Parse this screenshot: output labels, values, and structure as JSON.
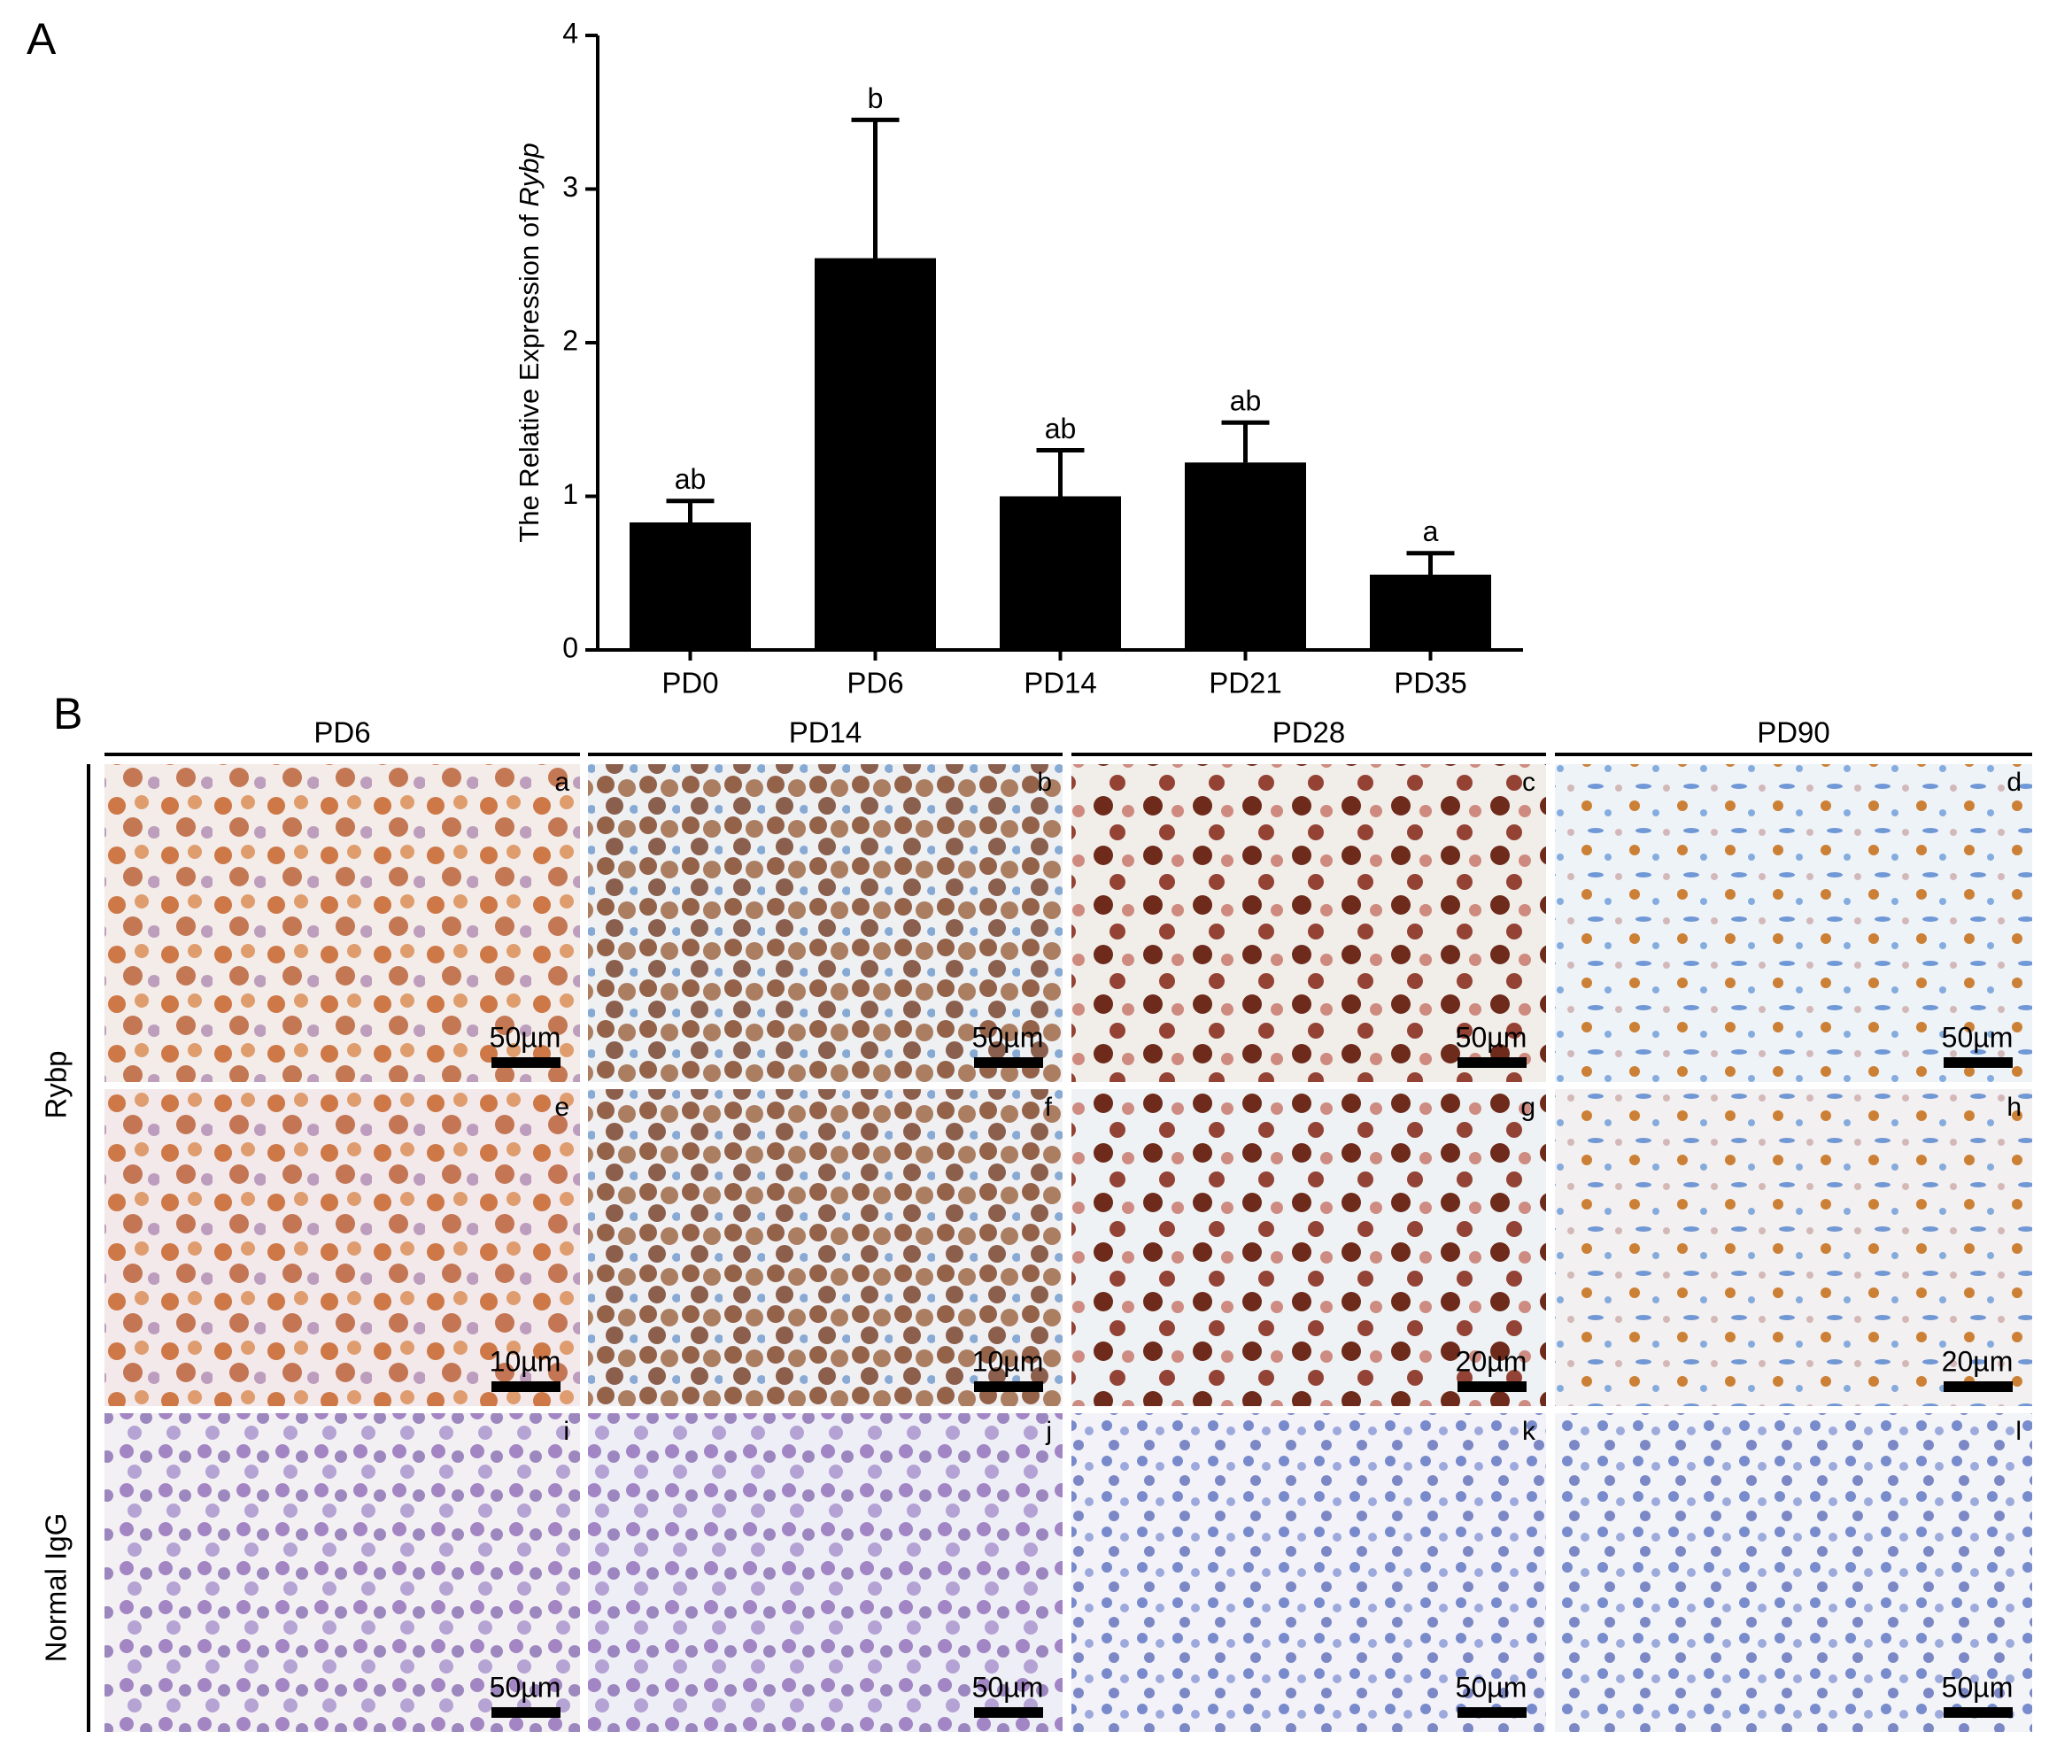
{
  "chart_data": {
    "type": "bar",
    "panel_label": "A",
    "ylabel": [
      "The Relative Expression of",
      "Rybp"
    ],
    "categories": [
      "PD0",
      "PD6",
      "PD14",
      "PD21",
      "PD35"
    ],
    "values": [
      0.83,
      2.55,
      1.0,
      1.22,
      0.49
    ],
    "errors": [
      0.14,
      0.9,
      0.3,
      0.26,
      0.14
    ],
    "significance": [
      "ab",
      "b",
      "ab",
      "ab",
      "a"
    ],
    "color": "#000000",
    "ylim": [
      0,
      4
    ],
    "yticks": [
      0,
      1,
      2,
      3,
      4
    ]
  },
  "figure": {
    "panel_label": "B",
    "columns": [
      "PD6",
      "PD14",
      "PD28",
      "PD90"
    ],
    "rows": [
      "Rybp",
      "Normal IgG"
    ],
    "tiles": [
      {
        "letter": "a",
        "scale": "50µm"
      },
      {
        "letter": "b",
        "scale": "50µm"
      },
      {
        "letter": "c",
        "scale": "50µm"
      },
      {
        "letter": "d",
        "scale": "50µm"
      },
      {
        "letter": "e",
        "scale": "10µm"
      },
      {
        "letter": "f",
        "scale": "10µm"
      },
      {
        "letter": "g",
        "scale": "20µm"
      },
      {
        "letter": "h",
        "scale": "20µm"
      },
      {
        "letter": "i",
        "scale": "50µm"
      },
      {
        "letter": "j",
        "scale": "50µm"
      },
      {
        "letter": "k",
        "scale": "50µm"
      },
      {
        "letter": "l",
        "scale": "50µm"
      }
    ]
  }
}
